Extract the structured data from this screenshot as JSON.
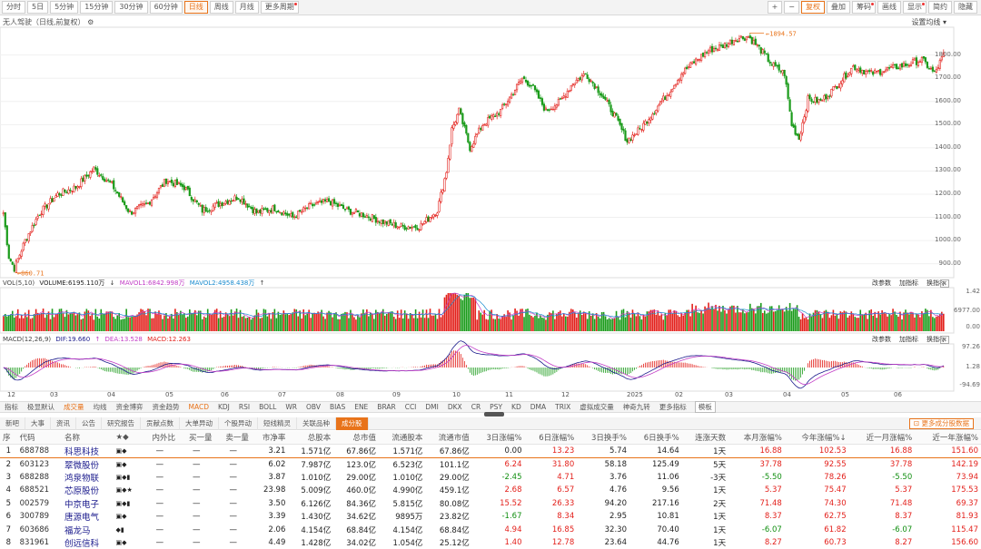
{
  "toolbar": {
    "periods": [
      "分时",
      "5日",
      "5分钟",
      "15分钟",
      "30分钟",
      "60分钟",
      "日线",
      "周线",
      "月线",
      "更多周期"
    ],
    "active_index": 6,
    "right": [
      "+",
      "−",
      "复权",
      "叠加",
      "筹码",
      "画线",
      "显示",
      "简约",
      "隐藏"
    ]
  },
  "stock_info": "无人驾驶（日线,前复权）",
  "set_ma": "设置均线",
  "price_axis": [
    "1800.00",
    "1700.00",
    "1600.00",
    "1500.00",
    "1400.00",
    "1300.00",
    "1200.00",
    "1100.00",
    "1000.00",
    "900.00"
  ],
  "annotations": {
    "high": "1894.57",
    "low": "860.71"
  },
  "vol": {
    "header": [
      "VOL(5,10)",
      "VOLUME:6195.110万",
      "MAVOL1:6842.998万",
      "MAVOL2:4958.438万"
    ],
    "axis": [
      "1.42",
      "6977.00",
      "0.00"
    ],
    "buttons": [
      "改参数",
      "加指标",
      "换指标"
    ]
  },
  "macd": {
    "header": [
      "MACD(12,26,9)",
      "DIF:19.660",
      "DEA:13.528",
      "MACD:12.263"
    ],
    "axis": [
      "97.26",
      "1.28",
      "-94.69"
    ],
    "buttons": [
      "改参数",
      "加指标",
      "换指标"
    ]
  },
  "date_axis": [
    "12",
    "03",
    "04",
    "05",
    "06",
    "07",
    "08",
    "09",
    "10",
    "11",
    "12",
    "2025",
    "02",
    "03",
    "04",
    "05",
    "06"
  ],
  "indicator_tabs": [
    "指标",
    "极显默认",
    "成交量",
    "均线",
    "资金博弈",
    "资金趋势",
    "MACD",
    "KDJ",
    "RSI",
    "BOLL",
    "WR",
    "OBV",
    "BIAS",
    "ENE",
    "BRAR",
    "CCI",
    "DMI",
    "DKX",
    "CR",
    "PSY",
    "KD",
    "DMA",
    "TRIX",
    "虚拟成交量",
    "神奇九转",
    "更多指标",
    "模板"
  ],
  "bottom_tabs": [
    "新吧",
    "大事",
    "资讯",
    "公告",
    "研究报告",
    "贡献点数",
    "大单异动",
    "个股异动",
    "短线精灵",
    "关联品种",
    "成分股"
  ],
  "more_btn": "更多成分股数据",
  "columns": [
    "序",
    "代码",
    "名称",
    "★◆",
    "内外比",
    "买一量",
    "卖一量",
    "市净率",
    "总股本",
    "总市值",
    "流通股本",
    "流通市值",
    "3日涨幅%",
    "6日涨幅%",
    "3日换手%",
    "6日换手%",
    "连涨天数",
    "本月涨幅%",
    "今年涨幅%↓",
    "近一月涨幅%",
    "近一年涨幅%"
  ],
  "rows": [
    [
      "1",
      "688788",
      "科思科技",
      "▣◆",
      "—",
      "—",
      "—",
      "3.21",
      "1.571亿",
      "67.86亿",
      "1.571亿",
      "67.86亿",
      "0.00",
      "13.23",
      "5.74",
      "14.64",
      "1天",
      "16.88",
      "102.53",
      "16.88",
      "151.60"
    ],
    [
      "2",
      "603123",
      "翠微股份",
      "▣◆",
      "—",
      "—",
      "—",
      "6.02",
      "7.987亿",
      "123.0亿",
      "6.523亿",
      "101.1亿",
      "6.24",
      "31.80",
      "58.18",
      "125.49",
      "5天",
      "37.78",
      "92.55",
      "37.78",
      "142.19"
    ],
    [
      "3",
      "688288",
      "鸿泉物联",
      "▣◆▮",
      "—",
      "—",
      "—",
      "3.87",
      "1.010亿",
      "29.00亿",
      "1.010亿",
      "29.00亿",
      "-2.45",
      "4.71",
      "3.76",
      "11.06",
      "-3天",
      "-5.50",
      "78.26",
      "-5.50",
      "73.94"
    ],
    [
      "4",
      "688521",
      "芯原股份",
      "▣◆★",
      "—",
      "—",
      "—",
      "23.98",
      "5.009亿",
      "460.0亿",
      "4.990亿",
      "459.1亿",
      "2.68",
      "6.57",
      "4.76",
      "9.56",
      "1天",
      "5.37",
      "75.47",
      "5.37",
      "175.53"
    ],
    [
      "5",
      "002579",
      "中京电子",
      "▣◆▮",
      "—",
      "—",
      "—",
      "3.50",
      "6.126亿",
      "84.36亿",
      "5.815亿",
      "80.08亿",
      "15.52",
      "26.33",
      "94.20",
      "217.16",
      "2天",
      "71.48",
      "74.30",
      "71.48",
      "69.37"
    ],
    [
      "6",
      "300789",
      "唐源电气",
      "▣◆",
      "—",
      "—",
      "—",
      "3.39",
      "1.430亿",
      "34.62亿",
      "9895万",
      "23.82亿",
      "-1.67",
      "8.34",
      "2.95",
      "10.81",
      "1天",
      "8.37",
      "62.75",
      "8.37",
      "81.93"
    ],
    [
      "7",
      "603686",
      "福龙马",
      "◆▮",
      "—",
      "—",
      "—",
      "2.06",
      "4.154亿",
      "68.84亿",
      "4.154亿",
      "68.84亿",
      "4.94",
      "16.85",
      "32.30",
      "70.40",
      "1天",
      "-6.07",
      "61.82",
      "-6.07",
      "115.47"
    ],
    [
      "8",
      "831961",
      "创远信科",
      "▣◆",
      "—",
      "—",
      "—",
      "4.49",
      "1.428亿",
      "34.02亿",
      "1.054亿",
      "25.12亿",
      "1.40",
      "12.78",
      "23.64",
      "44.76",
      "1天",
      "8.27",
      "60.73",
      "8.27",
      "156.60"
    ]
  ],
  "chart_data": {
    "type": "candlestick",
    "ylim": [
      840,
      1920
    ],
    "high": 1894.57,
    "low": 860.71,
    "anchors": [
      [
        0,
        1120
      ],
      [
        3,
        930
      ],
      [
        6,
        880
      ],
      [
        12,
        1000
      ],
      [
        20,
        1120
      ],
      [
        30,
        1200
      ],
      [
        40,
        1230
      ],
      [
        50,
        1310
      ],
      [
        60,
        1240
      ],
      [
        70,
        1120
      ],
      [
        80,
        1160
      ],
      [
        90,
        1260
      ],
      [
        100,
        1230
      ],
      [
        110,
        1130
      ],
      [
        120,
        1160
      ],
      [
        130,
        1190
      ],
      [
        140,
        1120
      ],
      [
        150,
        1140
      ],
      [
        160,
        1100
      ],
      [
        170,
        1150
      ],
      [
        180,
        1170
      ],
      [
        190,
        1130
      ],
      [
        200,
        1110
      ],
      [
        210,
        1080
      ],
      [
        220,
        1060
      ],
      [
        230,
        1060
      ],
      [
        240,
        1130
      ],
      [
        245,
        1300
      ],
      [
        248,
        1480
      ],
      [
        252,
        1560
      ],
      [
        258,
        1400
      ],
      [
        265,
        1500
      ],
      [
        275,
        1560
      ],
      [
        282,
        1640
      ],
      [
        287,
        1700
      ],
      [
        292,
        1670
      ],
      [
        300,
        1560
      ],
      [
        308,
        1600
      ],
      [
        315,
        1680
      ],
      [
        322,
        1720
      ],
      [
        330,
        1640
      ],
      [
        338,
        1540
      ],
      [
        345,
        1430
      ],
      [
        352,
        1480
      ],
      [
        360,
        1560
      ],
      [
        368,
        1640
      ],
      [
        375,
        1720
      ],
      [
        382,
        1770
      ],
      [
        390,
        1820
      ],
      [
        398,
        1840
      ],
      [
        405,
        1870
      ],
      [
        412,
        1880
      ],
      [
        418,
        1830
      ],
      [
        425,
        1760
      ],
      [
        432,
        1720
      ],
      [
        436,
        1500
      ],
      [
        440,
        1440
      ],
      [
        445,
        1610
      ],
      [
        452,
        1600
      ],
      [
        460,
        1660
      ],
      [
        470,
        1750
      ],
      [
        480,
        1720
      ],
      [
        490,
        1740
      ],
      [
        500,
        1760
      ],
      [
        508,
        1780
      ],
      [
        515,
        1720
      ],
      [
        520,
        1800
      ]
    ]
  }
}
